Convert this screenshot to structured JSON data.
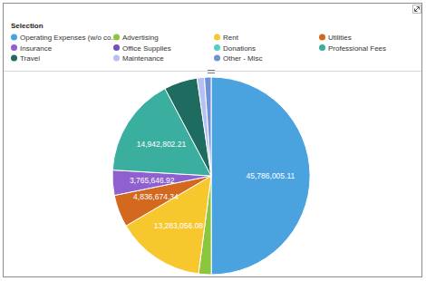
{
  "chart_data": {
    "type": "pie",
    "legend_title": "Selection",
    "legend": "top",
    "categories": [
      "Operating Expenses (w/o co...",
      "Advertising",
      "Rent",
      "Utilities",
      "Insurance",
      "Office Supplies",
      "Donations",
      "Professional Fees",
      "Travel",
      "Maintenance",
      "Other - Misc"
    ],
    "values": [
      45786005.11,
      1900000,
      13283056.08,
      4836674.34,
      3765646.92,
      0,
      0,
      14942802.21,
      5000000,
      1100000,
      1000000
    ],
    "value_labels": [
      "45,786,005.11",
      null,
      "13,283,056.08",
      "4,836,674.34",
      "3,765,646.92",
      null,
      null,
      "14,942,802.21",
      null,
      null,
      null
    ],
    "data_labels": true,
    "colors": [
      "#4aa3df",
      "#8cc63e",
      "#f7c82d",
      "#d2691e",
      "#8e61cf",
      "#7350c0",
      "#4fd1c5",
      "#3aae9f",
      "#1e6b60",
      "#b4c1f2",
      "#7090d8"
    ]
  }
}
